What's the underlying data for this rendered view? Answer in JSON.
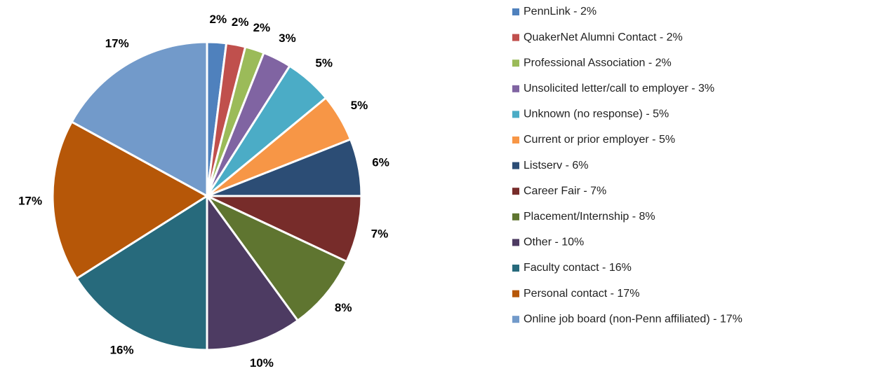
{
  "chart_data": {
    "type": "pie",
    "categories": [
      "PennLink - 2%",
      "QuakerNet Alumni Contact - 2%",
      "Professional Association - 2%",
      "Unsolicited letter/call to employer - 3%",
      "Unknown (no response) - 5%",
      "Current or prior employer - 5%",
      "Listserv - 6%",
      "Career Fair - 7%",
      "Placement/Internship - 8%",
      "Other - 10%",
      "Faculty contact - 16%",
      "Personal contact - 17%",
      "Online job board (non-Penn affiliated) - 17%"
    ],
    "values": [
      2,
      2,
      2,
      3,
      5,
      5,
      6,
      7,
      8,
      10,
      16,
      17,
      17
    ],
    "value_labels": [
      "2%",
      "2%",
      "2%",
      "3%",
      "5%",
      "5%",
      "6%",
      "7%",
      "8%",
      "10%",
      "16%",
      "17%",
      "17%"
    ],
    "colors": [
      "#4f81bd",
      "#c0504d",
      "#9bbb59",
      "#8064a2",
      "#4bacc6",
      "#f79646",
      "#2c4d75",
      "#772c2a",
      "#5f7530",
      "#4d3b62",
      "#276a7c",
      "#b65708",
      "#729aca"
    ],
    "legend": "right"
  }
}
